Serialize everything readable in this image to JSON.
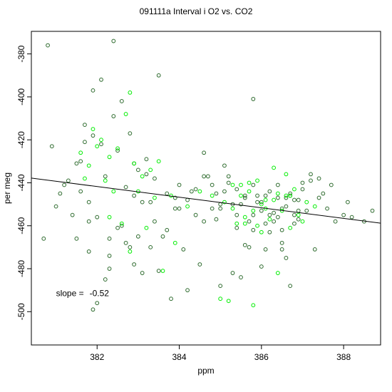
{
  "colors": {
    "dark_points": "#2e6b2e",
    "bright_points": "#00ee00",
    "fit_line": "#000000"
  },
  "chart_data": {
    "type": "scatter",
    "title": "091111a   Interval i O2 vs. CO2",
    "xlabel": "ppm",
    "ylabel": "per meg",
    "xlim": [
      380.4,
      388.9
    ],
    "ylim": [
      -515.5,
      -369.5
    ],
    "x_ticks": [
      382,
      384,
      386,
      388
    ],
    "y_ticks": [
      -380,
      -400,
      -420,
      -440,
      -460,
      -480,
      -500
    ],
    "grid": false,
    "legend": "none",
    "annotation": {
      "label": "slope =",
      "value": "-0.52",
      "at": [
        381.0,
        -491.5
      ]
    },
    "fit_line": {
      "slope": -0.52,
      "x": [
        380.4,
        388.9
      ],
      "y": [
        -437.8,
        -458.8
      ]
    },
    "series": [
      {
        "color": "dark",
        "x": [
          380.8,
          380.9,
          381.5,
          380.7,
          381.0,
          381.3,
          381.6,
          381.8,
          382.0,
          382.3,
          382.5,
          382.7,
          382.9,
          383.1,
          383.3,
          383.6,
          383.9,
          382.4,
          382.1,
          381.9,
          381.7,
          382.6,
          382.8,
          383.0,
          383.2,
          383.4,
          383.7,
          384.0,
          384.2,
          384.4,
          384.6,
          384.8,
          385.0,
          385.2,
          385.4,
          385.6,
          385.8,
          386.0,
          386.2,
          386.4,
          386.6,
          386.8,
          387.0,
          387.2,
          387.4,
          387.6,
          387.8,
          388.0,
          388.2,
          388.5,
          388.7,
          382.4,
          383.5,
          385.8,
          381.7,
          382.9,
          383.2,
          384.6,
          384.9,
          385.4,
          385.6,
          385.9,
          386.1,
          386.3,
          386.5,
          386.7,
          386.9,
          386.2,
          387.0,
          386.8,
          386.6,
          386.4,
          385.5,
          384.2,
          383.8,
          382.0,
          381.9,
          382.3,
          382.2,
          381.8,
          386.7,
          387.3,
          386.5,
          386.0,
          385.7,
          385.3,
          385.0,
          384.5,
          384.1,
          383.5,
          383.0,
          382.6,
          382.2,
          381.4,
          381.2,
          381.5,
          381.1,
          382.7,
          383.3,
          384.7,
          385.1,
          386.5,
          387.1,
          387.5,
          388.1,
          387.7,
          386.9,
          386.1,
          385.6,
          384.8,
          384.3,
          383.9,
          383.4,
          383.1,
          382.9,
          382.5,
          382.1,
          381.9,
          381.6,
          385.9,
          386.3,
          386.7,
          385.2,
          384.6,
          384.0,
          385.8,
          386.6,
          387.4,
          385.5,
          384.9,
          386.2,
          386.8,
          385.4,
          385.0,
          386.0,
          386.4,
          385.7,
          385.3,
          386.1,
          386.5,
          385.8,
          386.9,
          387.2,
          385.1,
          384.4,
          383.7,
          382.8,
          382.3,
          381.8
        ],
        "y": [
          -376,
          -423,
          -431,
          -466,
          -451,
          -439,
          -444,
          -449,
          -456,
          -474,
          -461,
          -468,
          -478,
          -482,
          -470,
          -465,
          -452,
          -374,
          -392,
          -397,
          -413,
          -402,
          -417,
          -434,
          -429,
          -438,
          -445,
          -452,
          -448,
          -443,
          -458,
          -441,
          -450,
          -437,
          -455,
          -447,
          -462,
          -449,
          -444,
          -456,
          -451,
          -448,
          -443,
          -439,
          -447,
          -452,
          -458,
          -455,
          -456,
          -458,
          -453,
          -409,
          -390,
          -401,
          -421,
          -431,
          -436,
          -426,
          -457,
          -461,
          -469,
          -446,
          -471,
          -458,
          -452,
          -446,
          -457,
          -463,
          -440,
          -455,
          -475,
          -441,
          -484,
          -490,
          -494,
          -496,
          -499,
          -480,
          -485,
          -472,
          -488,
          -471,
          -468,
          -479,
          -470,
          -482,
          -488,
          -478,
          -471,
          -481,
          -465,
          -460,
          -437,
          -455,
          -441,
          -466,
          -445,
          -442,
          -449,
          -437,
          -444,
          -471,
          -453,
          -445,
          -449,
          -441,
          -453,
          -459,
          -446,
          -452,
          -444,
          -447,
          -458,
          -449,
          -446,
          -425,
          -422,
          -418,
          -430,
          -449,
          -454,
          -445,
          -440,
          -437,
          -441,
          -455,
          -447,
          -438,
          -450,
          -445,
          -455,
          -459,
          -443,
          -452,
          -453,
          -447,
          -458,
          -450,
          -446,
          -462,
          -441,
          -448,
          -436,
          -432,
          -455,
          -462,
          -470,
          -466,
          -458
        ]
      },
      {
        "color": "bright",
        "x": [
          381.6,
          381.9,
          382.1,
          382.3,
          382.5,
          382.7,
          382.9,
          383.1,
          383.3,
          383.5,
          383.8,
          381.8,
          382.0,
          382.2,
          382.4,
          382.6,
          382.8,
          383.0,
          383.2,
          383.4,
          384.2,
          384.5,
          384.8,
          385.1,
          385.3,
          385.5,
          385.7,
          385.9,
          386.1,
          386.3,
          386.5,
          386.7,
          386.9,
          387.1,
          387.3,
          385.4,
          385.6,
          385.8,
          386.0,
          386.2,
          386.4,
          386.6,
          386.8,
          385.2,
          385.0,
          386.4,
          385.6,
          385.9,
          386.1,
          381.7,
          382.3,
          382.8,
          383.6,
          383.9,
          385.3,
          386.6,
          387.0,
          385.5,
          386.7,
          385.8,
          386.0,
          385.7,
          386.3
        ],
        "y": [
          -426,
          -415,
          -420,
          -428,
          -424,
          -408,
          -431,
          -437,
          -434,
          -430,
          -446,
          -432,
          -423,
          -439,
          -444,
          -459,
          -398,
          -444,
          -461,
          -447,
          -451,
          -444,
          -446,
          -449,
          -441,
          -446,
          -444,
          -439,
          -452,
          -448,
          -453,
          -446,
          -455,
          -449,
          -451,
          -459,
          -456,
          -453,
          -450,
          -457,
          -445,
          -446,
          -443,
          -495,
          -494,
          -482,
          -459,
          -460,
          -448,
          -438,
          -456,
          -472,
          -481,
          -468,
          -452,
          -436,
          -458,
          -441,
          -461,
          -497,
          -463,
          -440,
          -433
        ]
      }
    ]
  }
}
